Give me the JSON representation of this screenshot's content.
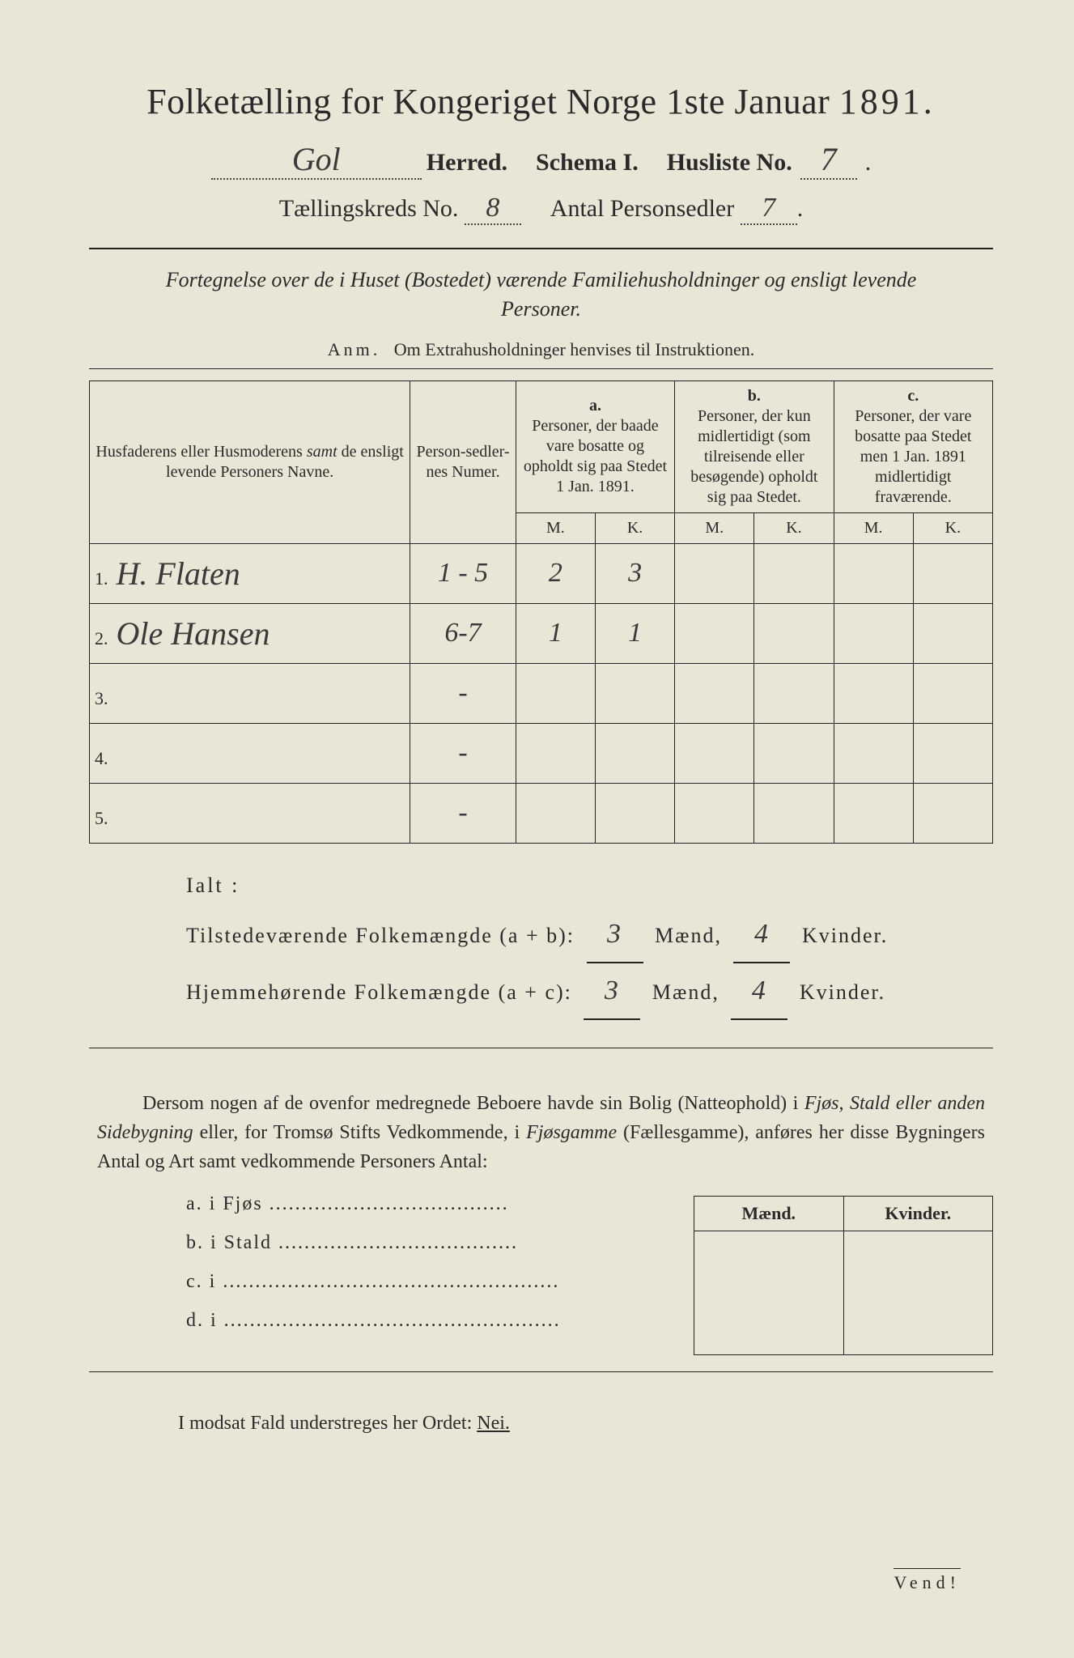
{
  "colors": {
    "paper": "#e8e6d6",
    "ink": "#2a2a2a",
    "rule": "#222222",
    "handwriting": "#3a3a3a"
  },
  "title": {
    "main": "Folketælling for Kongeriget Norge 1ste Januar",
    "year": "1891."
  },
  "header": {
    "herred_value": "Gol",
    "herred_label": "Herred.",
    "schema_label": "Schema I.",
    "husliste_label": "Husliste No.",
    "husliste_value": "7",
    "kreds_label": "Tællingskreds No.",
    "kreds_value": "8",
    "antal_label": "Antal Personsedler",
    "antal_value": "7"
  },
  "subtitle": "Fortegnelse over de i Huset (Bostedet) værende Familiehusholdninger og ensligt levende Personer.",
  "anm": {
    "label": "Anm.",
    "text": "Om Extrahusholdninger henvises til Instruktionen."
  },
  "table": {
    "head_name": "Husfaderens eller Husmoderens samt de ensligt levende Personers Navne.",
    "samt_italic": "samt",
    "head_num": "Person-sedler-nes Numer.",
    "col_a_label": "a.",
    "col_a_text": "Personer, der baade vare bosatte og opholdt sig paa Stedet 1 Jan. 1891.",
    "col_b_label": "b.",
    "col_b_text": "Personer, der kun midlertidigt (som tilreisende eller besøgende) opholdt sig paa Stedet.",
    "col_c_label": "c.",
    "col_c_text": "Personer, der vare bosatte paa Stedet men 1 Jan. 1891 midlertidigt fraværende.",
    "mk_M": "M.",
    "mk_K": "K.",
    "rows": [
      {
        "n": "1.",
        "name": "H. Flaten",
        "num": "1 - 5",
        "aM": "2",
        "aK": "3",
        "bM": "",
        "bK": "",
        "cM": "",
        "cK": ""
      },
      {
        "n": "2.",
        "name": "Ole Hansen",
        "num": "6-7",
        "aM": "1",
        "aK": "1",
        "bM": "",
        "bK": "",
        "cM": "",
        "cK": ""
      },
      {
        "n": "3.",
        "name": "",
        "num": "-",
        "aM": "",
        "aK": "",
        "bM": "",
        "bK": "",
        "cM": "",
        "cK": ""
      },
      {
        "n": "4.",
        "name": "",
        "num": "-",
        "aM": "",
        "aK": "",
        "bM": "",
        "bK": "",
        "cM": "",
        "cK": ""
      },
      {
        "n": "5.",
        "name": "",
        "num": "-",
        "aM": "",
        "aK": "",
        "bM": "",
        "bK": "",
        "cM": "",
        "cK": ""
      }
    ]
  },
  "ialt": {
    "label": "Ialt :",
    "line1_label": "Tilstedeværende Folkemængde (a + b):",
    "line2_label": "Hjemmehørende Folkemængde (a + c):",
    "maend": "Mænd,",
    "kvinder": "Kvinder.",
    "l1_m": "3",
    "l1_k": "4",
    "l2_m": "3",
    "l2_k": "4"
  },
  "para": {
    "t1": "Dersom nogen af de ovenfor medregnede Beboere havde sin Bolig (Natteophold) i ",
    "i1": "Fjøs, Stald eller anden Sidebygning",
    "t2": " eller, for Tromsø Stifts Vedkommende, i ",
    "i2": "Fjøsgamme",
    "t3": " (Fællesgamme), anføres her disse Bygningers Antal og Art samt vedkommende Personers Antal:"
  },
  "mk_small": {
    "M": "Mænd.",
    "K": "Kvinder."
  },
  "abcd": {
    "a": "a.  i      Fjøs .....................................",
    "b": "b.  i      Stald .....................................",
    "c": "c.  i ....................................................",
    "d": "d.  i ...................................................."
  },
  "modsat": {
    "text": "I modsat Fald understreges her Ordet: ",
    "nei": "Nei."
  },
  "vend": "Vend!"
}
